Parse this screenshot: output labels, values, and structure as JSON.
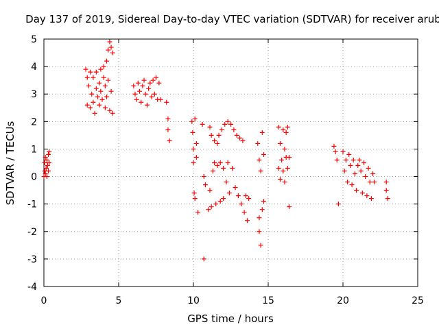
{
  "chart_data": {
    "type": "scatter",
    "title": "Day 137 of 2019, Sidereal Day-to-day VTEC variation (SDTVAR) for receiver arub",
    "xlabel": "GPS time / hours",
    "ylabel": "SDTVAR / TECUs",
    "xlim": [
      0,
      25
    ],
    "ylim": [
      -4,
      5
    ],
    "xticks": [
      "0",
      "5",
      "10",
      "15",
      "20",
      "25"
    ],
    "yticks": [
      "-4",
      "-3",
      "-2",
      "-1",
      "0",
      "1",
      "2",
      "3",
      "4",
      "5"
    ],
    "grid": true,
    "marker": "+",
    "color": "#ff0000",
    "series": [
      {
        "name": "arub",
        "points": [
          [
            0.0,
            0.0
          ],
          [
            0.05,
            0.2
          ],
          [
            0.05,
            0.5
          ],
          [
            0.1,
            0.7
          ],
          [
            0.1,
            0.1
          ],
          [
            0.15,
            0.3
          ],
          [
            0.2,
            0.6
          ],
          [
            0.2,
            0.0
          ],
          [
            0.25,
            0.4
          ],
          [
            0.3,
            0.8
          ],
          [
            0.3,
            0.2
          ],
          [
            0.35,
            0.5
          ],
          [
            0.35,
            0.9
          ],
          [
            2.8,
            3.9
          ],
          [
            2.9,
            3.6
          ],
          [
            2.9,
            2.6
          ],
          [
            3.0,
            3.3
          ],
          [
            3.1,
            3.8
          ],
          [
            3.1,
            2.5
          ],
          [
            3.2,
            3.0
          ],
          [
            3.3,
            3.6
          ],
          [
            3.3,
            2.7
          ],
          [
            3.4,
            2.3
          ],
          [
            3.5,
            3.2
          ],
          [
            3.5,
            3.8
          ],
          [
            3.6,
            2.9
          ],
          [
            3.7,
            3.4
          ],
          [
            3.7,
            2.6
          ],
          [
            3.8,
            3.9
          ],
          [
            3.8,
            3.1
          ],
          [
            3.9,
            2.8
          ],
          [
            4.0,
            3.6
          ],
          [
            4.0,
            4.0
          ],
          [
            4.1,
            3.3
          ],
          [
            4.1,
            2.5
          ],
          [
            4.2,
            4.2
          ],
          [
            4.2,
            2.9
          ],
          [
            4.3,
            4.6
          ],
          [
            4.3,
            3.5
          ],
          [
            4.4,
            4.9
          ],
          [
            4.4,
            2.4
          ],
          [
            4.5,
            4.7
          ],
          [
            4.5,
            3.1
          ],
          [
            4.6,
            4.5
          ],
          [
            4.6,
            2.3
          ],
          [
            6.0,
            3.3
          ],
          [
            6.1,
            3.0
          ],
          [
            6.2,
            2.8
          ],
          [
            6.3,
            3.4
          ],
          [
            6.4,
            3.1
          ],
          [
            6.5,
            2.7
          ],
          [
            6.6,
            3.3
          ],
          [
            6.7,
            3.5
          ],
          [
            6.8,
            3.0
          ],
          [
            6.9,
            2.6
          ],
          [
            7.0,
            3.2
          ],
          [
            7.1,
            3.4
          ],
          [
            7.2,
            2.9
          ],
          [
            7.3,
            3.5
          ],
          [
            7.4,
            3.0
          ],
          [
            7.5,
            3.6
          ],
          [
            7.6,
            2.8
          ],
          [
            7.7,
            3.4
          ],
          [
            7.8,
            2.8
          ],
          [
            8.2,
            2.7
          ],
          [
            8.3,
            2.1
          ],
          [
            8.3,
            1.7
          ],
          [
            8.4,
            1.3
          ],
          [
            9.9,
            2.0
          ],
          [
            9.95,
            1.6
          ],
          [
            10.0,
            1.0
          ],
          [
            10.0,
            0.5
          ],
          [
            10.05,
            -0.6
          ],
          [
            10.1,
            2.1
          ],
          [
            10.1,
            -0.8
          ],
          [
            10.2,
            1.2
          ],
          [
            10.2,
            0.7
          ],
          [
            10.3,
            -1.3
          ],
          [
            10.6,
            1.9
          ],
          [
            10.7,
            -3.0
          ],
          [
            10.7,
            0.0
          ],
          [
            10.8,
            -0.3
          ],
          [
            11.0,
            -1.2
          ],
          [
            11.1,
            1.8
          ],
          [
            11.1,
            -0.5
          ],
          [
            11.2,
            1.5
          ],
          [
            11.2,
            -1.1
          ],
          [
            11.3,
            0.2
          ],
          [
            11.4,
            1.3
          ],
          [
            11.4,
            0.5
          ],
          [
            11.5,
            -1.0
          ],
          [
            11.6,
            1.2
          ],
          [
            11.6,
            0.4
          ],
          [
            11.7,
            1.5
          ],
          [
            11.8,
            -0.9
          ],
          [
            11.8,
            0.5
          ],
          [
            11.9,
            1.7
          ],
          [
            12.0,
            0.3
          ],
          [
            12.0,
            -0.8
          ],
          [
            12.1,
            1.9
          ],
          [
            12.2,
            -0.2
          ],
          [
            12.3,
            2.0
          ],
          [
            12.3,
            0.5
          ],
          [
            12.4,
            -0.6
          ],
          [
            12.5,
            1.9
          ],
          [
            12.6,
            0.3
          ],
          [
            12.7,
            1.7
          ],
          [
            12.8,
            -0.4
          ],
          [
            12.9,
            1.5
          ],
          [
            13.0,
            -0.7
          ],
          [
            13.1,
            1.4
          ],
          [
            13.2,
            -1.0
          ],
          [
            13.3,
            1.3
          ],
          [
            13.4,
            -1.3
          ],
          [
            13.5,
            -0.7
          ],
          [
            13.6,
            -1.6
          ],
          [
            13.7,
            -0.8
          ],
          [
            14.3,
            1.2
          ],
          [
            14.4,
            0.6
          ],
          [
            14.4,
            -1.5
          ],
          [
            14.4,
            -2.0
          ],
          [
            14.5,
            0.2
          ],
          [
            14.5,
            -2.5
          ],
          [
            14.6,
            1.6
          ],
          [
            14.6,
            -1.2
          ],
          [
            14.7,
            0.8
          ],
          [
            14.7,
            -0.9
          ],
          [
            15.7,
            1.8
          ],
          [
            15.7,
            0.3
          ],
          [
            15.8,
            1.2
          ],
          [
            15.8,
            -0.1
          ],
          [
            15.9,
            0.6
          ],
          [
            16.0,
            1.7
          ],
          [
            16.0,
            0.2
          ],
          [
            16.1,
            1.0
          ],
          [
            16.1,
            -0.2
          ],
          [
            16.2,
            1.6
          ],
          [
            16.2,
            0.7
          ],
          [
            16.3,
            0.3
          ],
          [
            16.3,
            1.8
          ],
          [
            16.4,
            0.7
          ],
          [
            16.4,
            -1.1
          ],
          [
            19.4,
            1.1
          ],
          [
            19.5,
            0.9
          ],
          [
            19.6,
            0.6
          ],
          [
            19.7,
            -1.0
          ],
          [
            20.0,
            0.9
          ],
          [
            20.1,
            0.2
          ],
          [
            20.2,
            0.6
          ],
          [
            20.3,
            -0.2
          ],
          [
            20.4,
            0.8
          ],
          [
            20.5,
            0.4
          ],
          [
            20.6,
            -0.3
          ],
          [
            20.7,
            0.6
          ],
          [
            20.8,
            0.1
          ],
          [
            20.9,
            -0.5
          ],
          [
            21.0,
            0.4
          ],
          [
            21.1,
            0.6
          ],
          [
            21.2,
            0.2
          ],
          [
            21.3,
            -0.6
          ],
          [
            21.4,
            0.5
          ],
          [
            21.5,
            0.0
          ],
          [
            21.6,
            -0.7
          ],
          [
            21.7,
            0.3
          ],
          [
            21.8,
            -0.2
          ],
          [
            21.9,
            -0.8
          ],
          [
            22.0,
            0.1
          ],
          [
            22.1,
            -0.2
          ],
          [
            22.9,
            -0.2
          ],
          [
            22.9,
            -0.5
          ],
          [
            23.0,
            -0.8
          ]
        ]
      }
    ]
  }
}
